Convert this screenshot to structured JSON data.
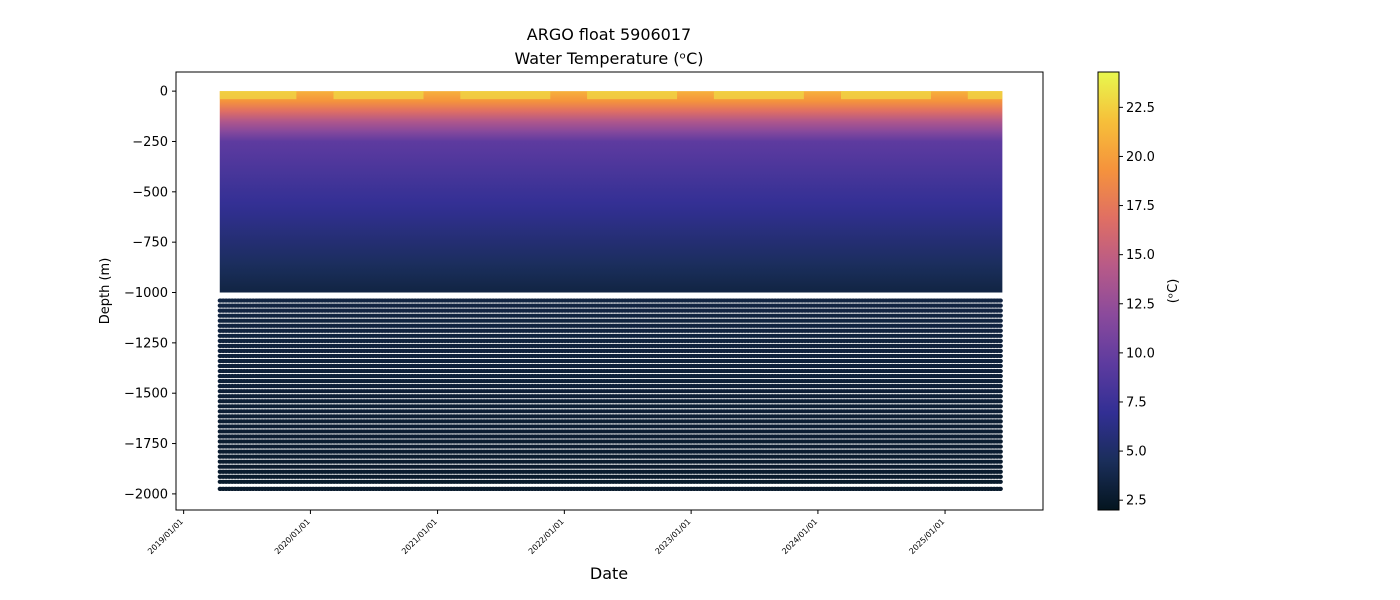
{
  "chart_data": {
    "type": "scatter",
    "title": "ARGO float 5906017",
    "subtitle": "Water Temperature (ᵒC)",
    "xlabel": "Date",
    "ylabel": "Depth (m)",
    "xlim": [
      "2018-12-10",
      "2025-10-10"
    ],
    "ylim": [
      -2080,
      95
    ],
    "x_ticks": [
      {
        "value": "2019-01-01",
        "label": "2019/01/01"
      },
      {
        "value": "2020-01-01",
        "label": "2020/01/01"
      },
      {
        "value": "2021-01-01",
        "label": "2021/01/01"
      },
      {
        "value": "2022-01-01",
        "label": "2022/01/01"
      },
      {
        "value": "2023-01-01",
        "label": "2023/01/01"
      },
      {
        "value": "2024-01-01",
        "label": "2024/01/01"
      },
      {
        "value": "2025-01-01",
        "label": "2025/01/01"
      }
    ],
    "y_ticks": [
      {
        "value": 0,
        "label": "0"
      },
      {
        "value": -250,
        "label": "−250"
      },
      {
        "value": -500,
        "label": "−500"
      },
      {
        "value": -750,
        "label": "−750"
      },
      {
        "value": -1000,
        "label": "−1000"
      },
      {
        "value": -1250,
        "label": "−1250"
      },
      {
        "value": -1500,
        "label": "−1500"
      },
      {
        "value": -1750,
        "label": "−1750"
      },
      {
        "value": -2000,
        "label": "−2000"
      }
    ],
    "data_extent": {
      "start": "2019-04-15",
      "end": "2025-06-15",
      "depth_top": 0,
      "depth_bottom": -2000
    },
    "deep_sample_depths": [
      -1040,
      -1065,
      -1090,
      -1115,
      -1140,
      -1165,
      -1190,
      -1215,
      -1240,
      -1265,
      -1290,
      -1315,
      -1340,
      -1365,
      -1390,
      -1415,
      -1440,
      -1465,
      -1490,
      -1515,
      -1540,
      -1565,
      -1590,
      -1615,
      -1640,
      -1665,
      -1690,
      -1715,
      -1740,
      -1765,
      -1790,
      -1815,
      -1840,
      -1865,
      -1890,
      -1915,
      -1940,
      -1975
    ],
    "temperature_profile": [
      {
        "depth": 0,
        "temp": 21
      },
      {
        "depth": -60,
        "temp": 19
      },
      {
        "depth": -150,
        "temp": 14
      },
      {
        "depth": -250,
        "temp": 9.5
      },
      {
        "depth": -500,
        "temp": 7.5
      },
      {
        "depth": -750,
        "temp": 5.5
      },
      {
        "depth": -1000,
        "temp": 3.5
      },
      {
        "depth": -2000,
        "temp": 2.5
      }
    ],
    "colorbar": {
      "label": "(ᵒC)",
      "range": [
        2.0,
        24.3
      ],
      "colormap": "thermal",
      "stops": [
        "#04151f",
        "#1a2e5a",
        "#322f94",
        "#5d3b9f",
        "#8a4a9c",
        "#b75a88",
        "#e06f63",
        "#f5933c",
        "#f6c03a",
        "#e8f84e"
      ],
      "ticks": [
        {
          "value": 2.5,
          "label": "2.5"
        },
        {
          "value": 5.0,
          "label": "5.0"
        },
        {
          "value": 7.5,
          "label": "7.5"
        },
        {
          "value": 10.0,
          "label": "10.0"
        },
        {
          "value": 12.5,
          "label": "12.5"
        },
        {
          "value": 15.0,
          "label": "15.0"
        },
        {
          "value": 17.5,
          "label": "17.5"
        },
        {
          "value": 20.0,
          "label": "20.0"
        },
        {
          "value": 22.5,
          "label": "22.5"
        }
      ]
    },
    "grid": false
  }
}
